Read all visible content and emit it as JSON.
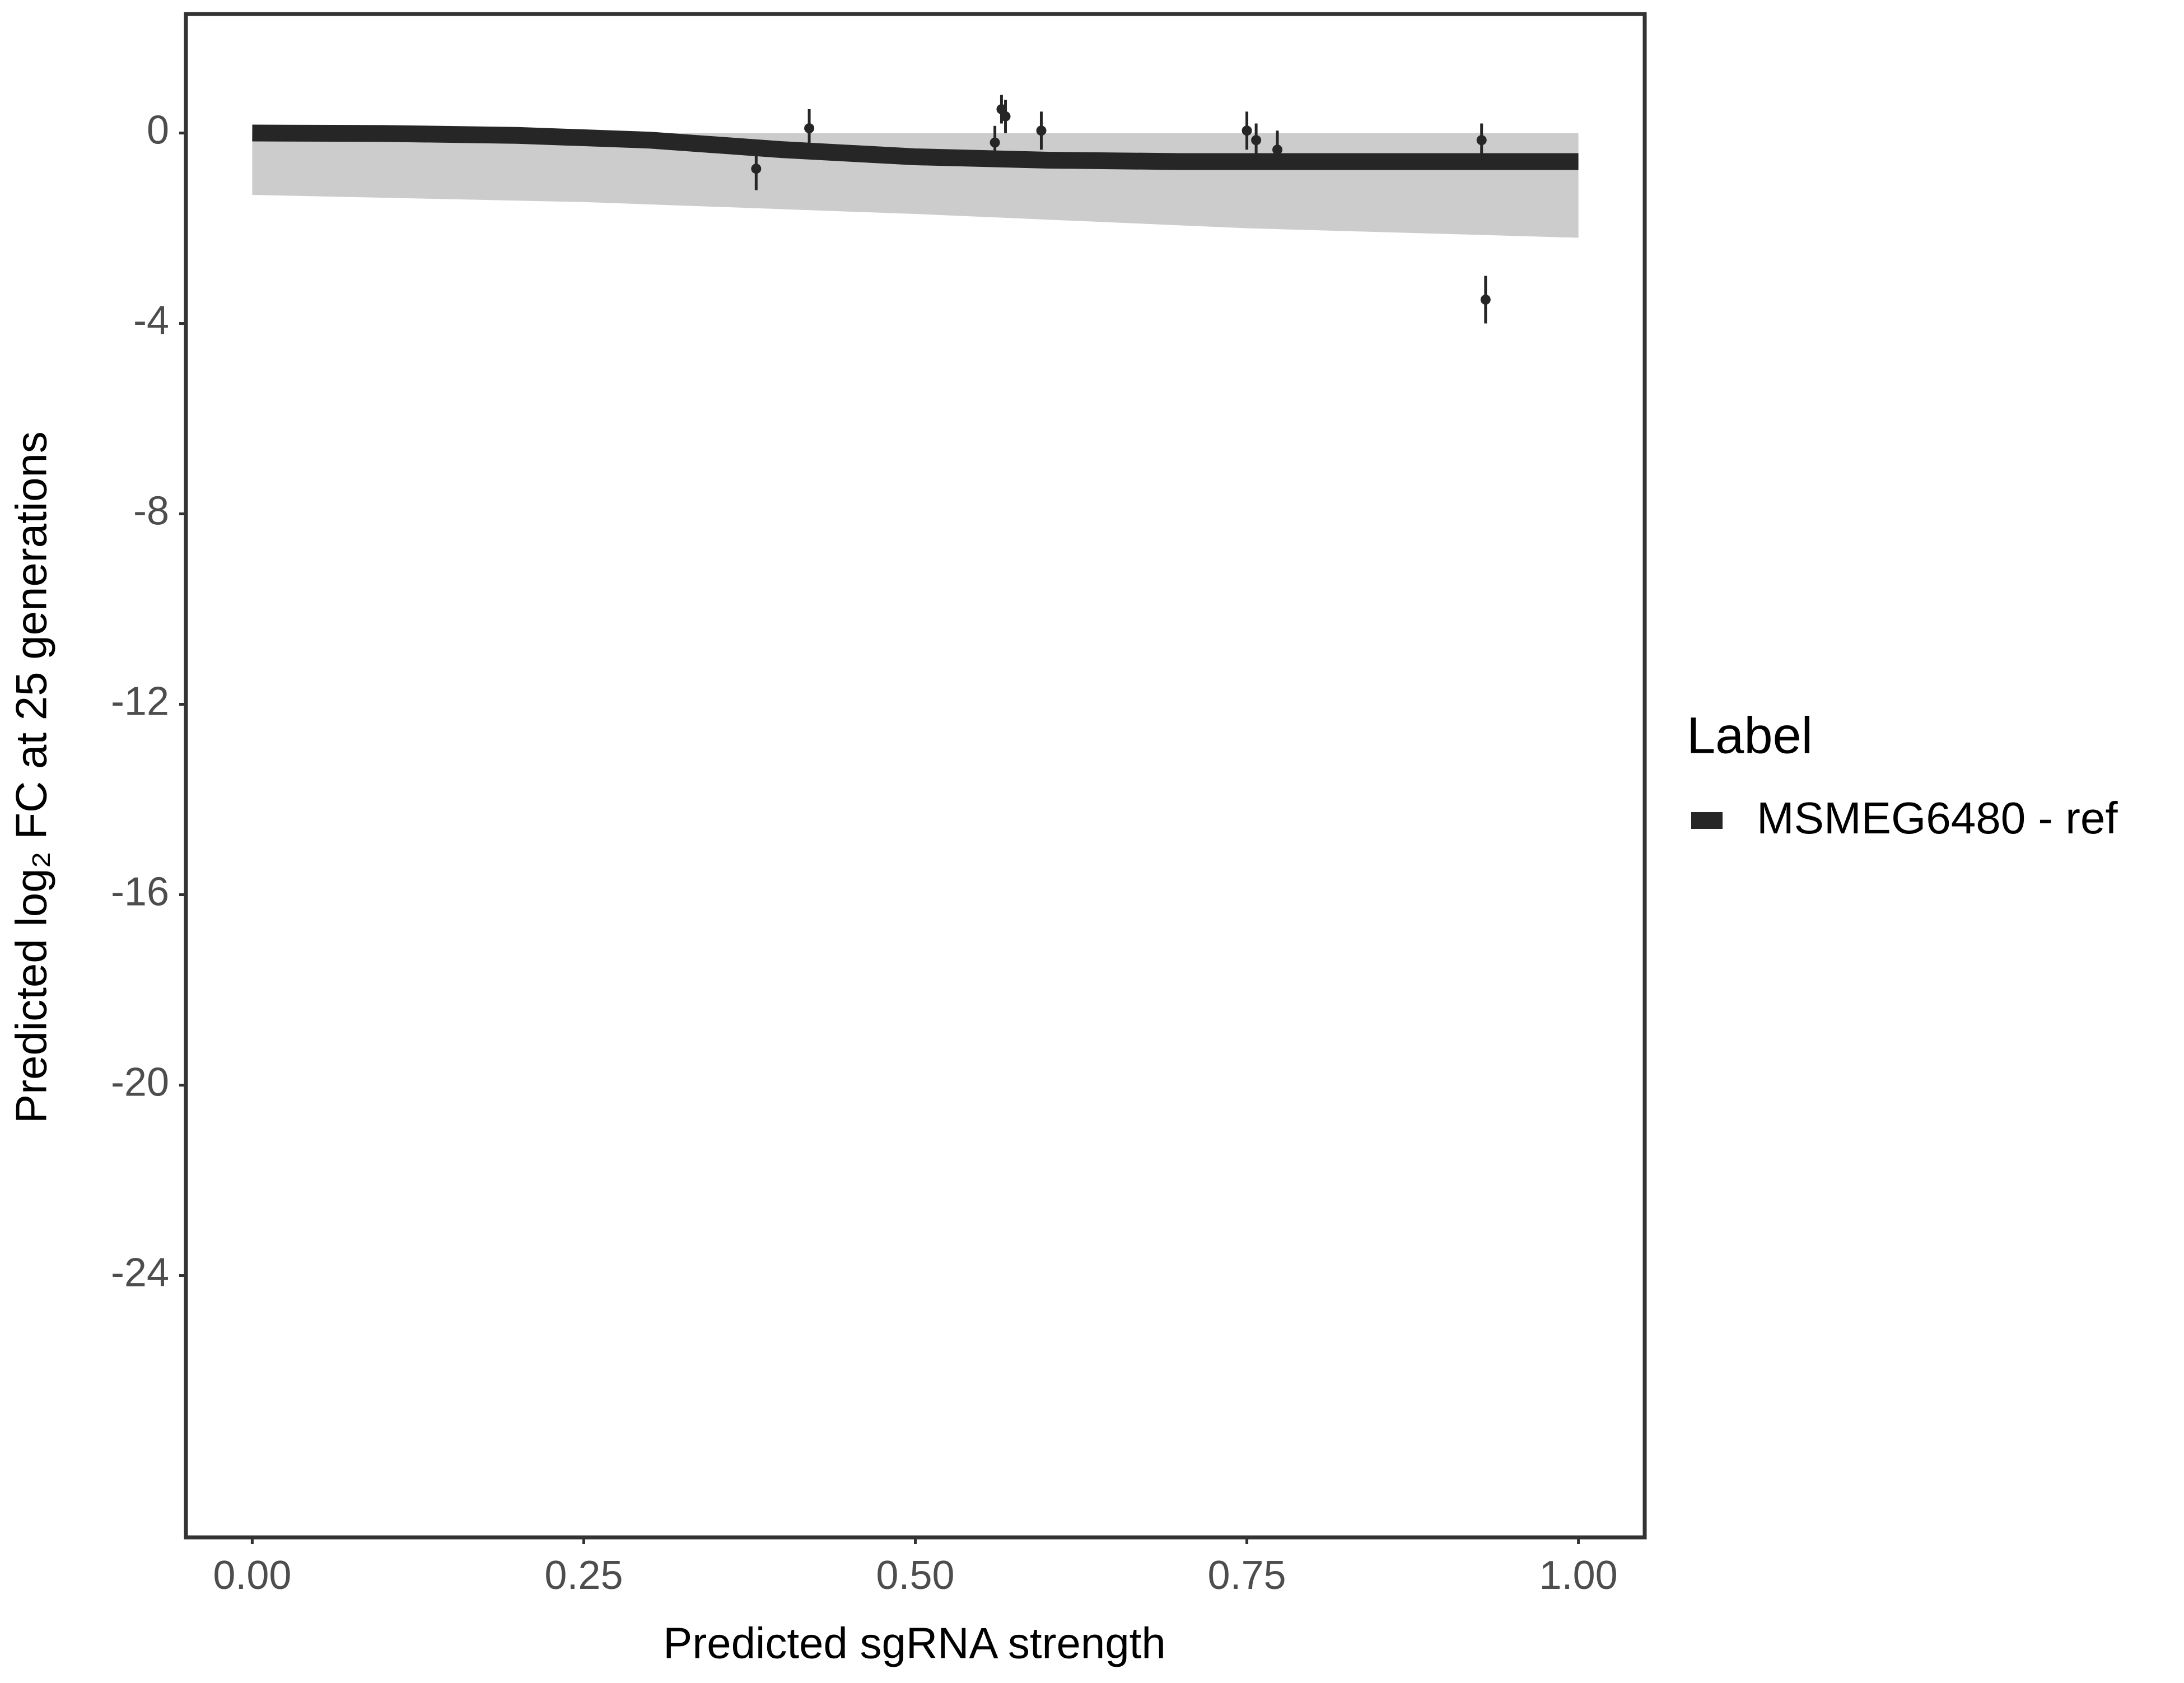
{
  "chart_data": {
    "type": "errorbar_fit",
    "xlabel": "Predicted sgRNA strength",
    "ylabel": "Predicted  log₂ FC at 25 generations",
    "xlim": [
      -0.05,
      1.05
    ],
    "xticks": [
      {
        "value": 0,
        "label": "0.00"
      },
      {
        "value": 0.25,
        "label": "0.25"
      },
      {
        "value": 0.5,
        "label": "0.50"
      },
      {
        "value": 0.75,
        "label": "0.75"
      },
      {
        "value": 1,
        "label": "1.00"
      }
    ],
    "ylim": [
      -29.5,
      2.5
    ],
    "yticks": [
      0,
      -4,
      -8,
      -12,
      -16,
      -20,
      -24
    ],
    "legend_title": "Label",
    "fit": {
      "name": "MSMEG6480 - ref",
      "color": "#262626",
      "x": [
        0,
        0.1,
        0.2,
        0.3,
        0.4,
        0.5,
        0.6,
        0.7,
        0.8,
        0.9,
        1.0
      ],
      "values": [
        0,
        -0.01,
        -0.05,
        -0.15,
        -0.35,
        -0.5,
        -0.57,
        -0.6,
        -0.6,
        -0.6,
        -0.6
      ]
    },
    "band": {
      "color": "#aaaaaa",
      "x": [
        0,
        0.25,
        0.5,
        0.75,
        1.0
      ],
      "upper": [
        0,
        0,
        0,
        0,
        0
      ],
      "lower": [
        -1.3,
        -1.45,
        -1.7,
        -2.0,
        -2.2
      ]
    },
    "points": {
      "color": "#262626",
      "x": [
        0.38,
        0.42,
        0.56,
        0.565,
        0.568,
        0.595,
        0.75,
        0.757,
        0.773,
        0.927,
        0.93
      ],
      "values": [
        -0.75,
        0.1,
        -0.2,
        0.5,
        0.35,
        0.05,
        0.05,
        -0.15,
        -0.35,
        -0.15,
        -3.5
      ],
      "errors": [
        0.45,
        0.4,
        0.35,
        0.3,
        0.35,
        0.4,
        0.4,
        0.35,
        0.4,
        0.35,
        0.5
      ]
    }
  }
}
